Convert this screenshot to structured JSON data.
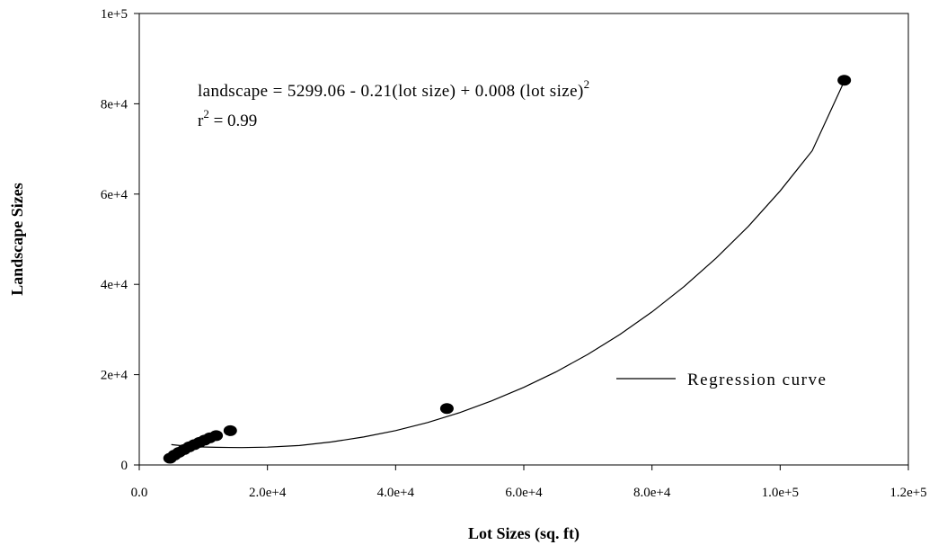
{
  "chart_data": {
    "type": "scatter",
    "xlabel": "Lot Sizes (sq. ft)",
    "ylabel": "Landscape Sizes",
    "xlim": [
      0,
      120000
    ],
    "ylim": [
      0,
      100000
    ],
    "x_ticks": [
      0,
      20000,
      40000,
      60000,
      80000,
      100000,
      120000
    ],
    "x_tick_labels": [
      "0.0",
      "2.0e+4",
      "4.0e+4",
      "6.0e+4",
      "8.0e+4",
      "1.0e+5",
      "1.2e+5"
    ],
    "y_ticks": [
      0,
      20000,
      40000,
      60000,
      80000,
      100000
    ],
    "y_tick_labels": [
      "0",
      "2e+4",
      "4e+4",
      "6e+4",
      "8e+4",
      "1e+5"
    ],
    "grid": false,
    "legend": {
      "placement": "right",
      "entries": [
        {
          "label": "Regression curve",
          "marker": "line"
        }
      ]
    },
    "annotation": {
      "equation_main": "landscape = 5299.06 - 0.21(lot size) + 0.008 (lot size)",
      "equation_exponent": "2",
      "r2_prefix": "r",
      "r2_exponent": "2",
      "r2_suffix": " = 0.99"
    },
    "points": [
      {
        "x": 4800,
        "y": 1500
      },
      {
        "x": 5500,
        "y": 2200
      },
      {
        "x": 6200,
        "y": 2800
      },
      {
        "x": 7000,
        "y": 3400
      },
      {
        "x": 7800,
        "y": 4000
      },
      {
        "x": 8600,
        "y": 4500
      },
      {
        "x": 9400,
        "y": 5000
      },
      {
        "x": 10200,
        "y": 5500
      },
      {
        "x": 11000,
        "y": 6000
      },
      {
        "x": 12000,
        "y": 6500
      },
      {
        "x": 14200,
        "y": 7600
      },
      {
        "x": 48000,
        "y": 12500
      },
      {
        "x": 110000,
        "y": 85200
      }
    ],
    "regression_curve": {
      "x": [
        5000,
        7000,
        9000,
        12000,
        16000,
        20000,
        25000,
        30000,
        35000,
        40000,
        45000,
        50000,
        55000,
        60000,
        65000,
        70000,
        75000,
        80000,
        85000,
        90000,
        95000,
        100000,
        105000,
        110000
      ],
      "y": [
        4500,
        4200,
        4000,
        3900,
        3850,
        3950,
        4300,
        5100,
        6200,
        7600,
        9400,
        11600,
        14200,
        17200,
        20600,
        24500,
        28900,
        33900,
        39500,
        45800,
        52800,
        60700,
        69600,
        85000
      ]
    }
  }
}
